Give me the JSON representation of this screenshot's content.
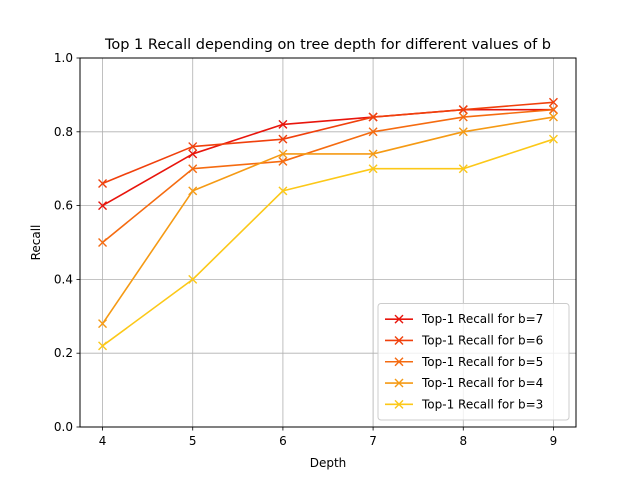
{
  "chart_data": {
    "type": "line",
    "title": "Top 1 Recall depending on tree depth for different values of b",
    "xlabel": "Depth",
    "ylabel": "Recall",
    "x": [
      4,
      5,
      6,
      7,
      8,
      9
    ],
    "xlim": [
      3.75,
      9.25
    ],
    "ylim": [
      0.0,
      1.0
    ],
    "xticks": [
      "4",
      "5",
      "6",
      "7",
      "8",
      "9"
    ],
    "yticks": [
      "0.0",
      "0.2",
      "0.4",
      "0.6",
      "0.8",
      "1.0"
    ],
    "grid": true,
    "legend_position": "lower-right",
    "marker": "x",
    "series": [
      {
        "name": "Top-1 Recall for b=7",
        "color": "#e8150c",
        "values": [
          0.6,
          0.74,
          0.82,
          0.84,
          0.86,
          0.86
        ]
      },
      {
        "name": "Top-1 Recall for b=6",
        "color": "#f0400c",
        "values": [
          0.66,
          0.76,
          0.78,
          0.84,
          0.86,
          0.88
        ]
      },
      {
        "name": "Top-1 Recall for b=5",
        "color": "#f56b10",
        "values": [
          0.5,
          0.7,
          0.72,
          0.8,
          0.84,
          0.86
        ]
      },
      {
        "name": "Top-1 Recall for b=4",
        "color": "#f59a14",
        "values": [
          0.28,
          0.64,
          0.74,
          0.74,
          0.8,
          0.84
        ]
      },
      {
        "name": "Top-1 Recall for b=3",
        "color": "#fcc818",
        "values": [
          0.22,
          0.4,
          0.64,
          0.7,
          0.7,
          0.78
        ]
      }
    ]
  }
}
